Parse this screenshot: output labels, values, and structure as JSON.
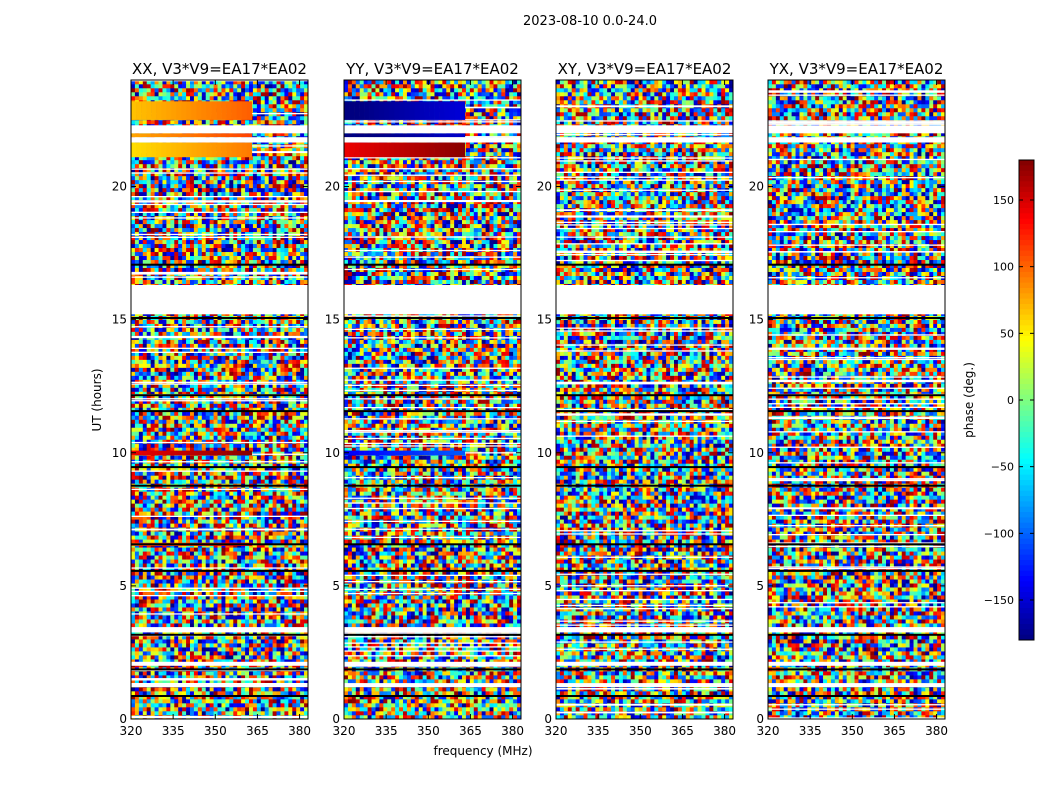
{
  "suptitle": "2023-08-10 0.0-24.0",
  "colorbar": {
    "label": "phase (deg.)",
    "ticks": [
      150,
      100,
      50,
      0,
      -50,
      -100,
      -150
    ],
    "range": [
      -180,
      180
    ],
    "colormap": "jet",
    "colors": [
      "#00007f",
      "#0000ff",
      "#00bfff",
      "#7fff7f",
      "#ffff00",
      "#ff7f00",
      "#ff0000",
      "#7f0000"
    ]
  },
  "chart_data": [
    {
      "type": "heatmap",
      "title": "XX, V3*V9=EA17*EA02",
      "xlabel": "",
      "ylabel": "UT (hours)",
      "xlim": [
        320,
        383
      ],
      "ylim": [
        0,
        24
      ],
      "xticks": [
        320,
        335,
        350,
        365,
        380
      ],
      "yticks": [
        0,
        5,
        10,
        15,
        20
      ],
      "value": "phase (deg.)",
      "coherent_bands": [
        {
          "t0": 21.1,
          "t1": 21.65,
          "phase": 75
        },
        {
          "t0": 21.85,
          "t1": 22.0,
          "phase": 95
        },
        {
          "t0": 22.5,
          "t1": 23.2,
          "phase": 85
        },
        {
          "t0": 9.9,
          "t1": 10.08,
          "phase": 160
        },
        {
          "t0": 6.5,
          "t1": 6.62,
          "phase": 120
        }
      ]
    },
    {
      "type": "heatmap",
      "title": "YY, V3*V9=EA17*EA02",
      "xlabel": "frequency (MHz)",
      "ylabel": "",
      "xlim": [
        320,
        383
      ],
      "ylim": [
        0,
        24
      ],
      "xticks": [
        320,
        335,
        350,
        365,
        380
      ],
      "yticks": [
        0,
        5,
        10,
        15,
        20
      ],
      "value": "phase (deg.)",
      "coherent_bands": [
        {
          "t0": 21.1,
          "t1": 21.65,
          "phase": 160
        },
        {
          "t0": 21.85,
          "t1": 22.0,
          "phase": -170
        },
        {
          "t0": 22.5,
          "t1": 23.2,
          "phase": -165
        },
        {
          "t0": 9.9,
          "t1": 10.08,
          "phase": -120
        }
      ]
    },
    {
      "type": "heatmap",
      "title": "XY, V3*V9=EA17*EA02",
      "xlabel": "",
      "ylabel": "",
      "xlim": [
        320,
        383
      ],
      "ylim": [
        0,
        24
      ],
      "xticks": [
        320,
        335,
        350,
        365,
        380
      ],
      "yticks": [
        0,
        5,
        10,
        15,
        20
      ],
      "value": "phase (deg.)",
      "coherent_bands": []
    },
    {
      "type": "heatmap",
      "title": "YX, V3*V9=EA17*EA02",
      "xlabel": "",
      "ylabel": "",
      "xlim": [
        320,
        383
      ],
      "ylim": [
        0,
        24
      ],
      "xticks": [
        320,
        335,
        350,
        365,
        380
      ],
      "yticks": [
        0,
        5,
        10,
        15,
        20
      ],
      "value": "phase (deg.)",
      "coherent_bands": []
    }
  ],
  "flagged_gaps_hours": [
    [
      15.2,
      16.3
    ],
    [
      21.65,
      21.85
    ],
    [
      22.0,
      22.3
    ],
    [
      3.25,
      3.45
    ],
    [
      2.0,
      2.15
    ],
    [
      1.2,
      1.35
    ]
  ],
  "dark_rows_hours": [
    15.1,
    17.1,
    12.2,
    11.6,
    9.5,
    8.8,
    6.6,
    5.6,
    3.2,
    1.9,
    0.9
  ]
}
